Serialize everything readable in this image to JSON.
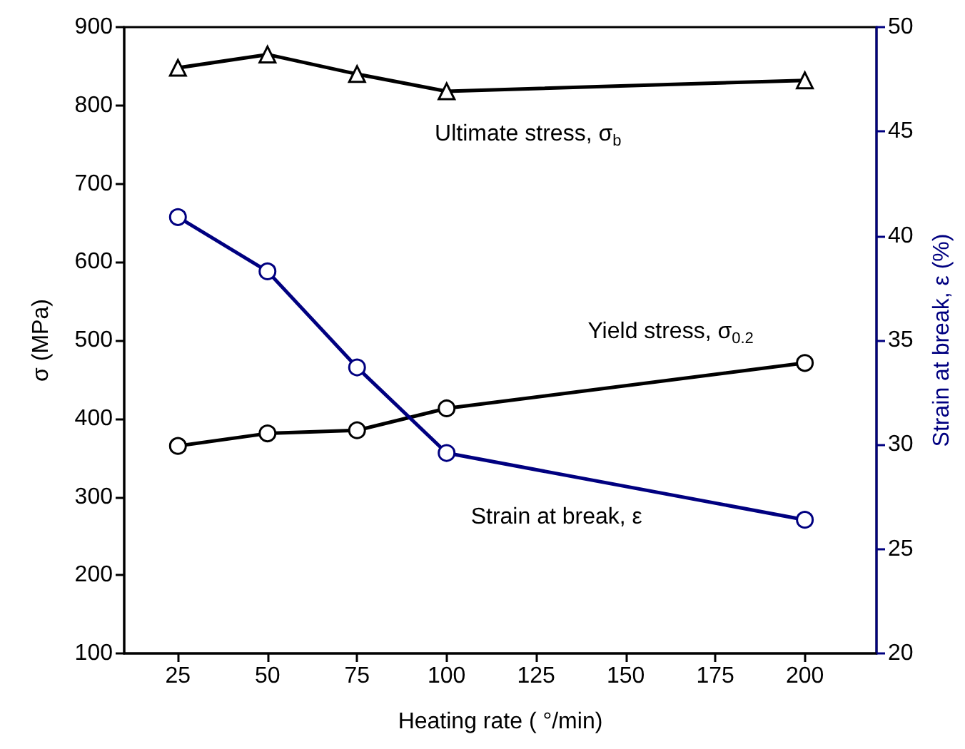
{
  "chart_data": {
    "type": "line",
    "xlabel": "Heating rate ( °/min)",
    "ylabel": "σ (MPa)",
    "y2label": "Strain at break, ε (%)",
    "x": [
      25,
      50,
      75,
      100,
      200
    ],
    "series": [
      {
        "name": "Ultimate stress, σ$_{b}$",
        "color": "#000000",
        "marker": "triangle",
        "values": [
          848,
          865,
          840,
          818,
          832
        ]
      },
      {
        "name": "Yield stress, σ$_{0.2}$",
        "color": "#000000",
        "marker": "circle",
        "values": [
          365,
          381,
          385,
          413,
          471
        ]
      },
      {
        "name": "Strain at break, ε",
        "color": "#000080",
        "marker": "circle",
        "axis": "y2",
        "values": [
          40.9,
          38.3,
          33.7,
          29.6,
          26.4
        ]
      }
    ],
    "xlim": [
      10,
      220
    ],
    "xticks": [
      25,
      50,
      75,
      100,
      125,
      150,
      175,
      200
    ],
    "ylim": [
      100,
      900
    ],
    "yticks": [
      100,
      200,
      300,
      400,
      500,
      600,
      700,
      800,
      900
    ],
    "y2lim": [
      20,
      50
    ],
    "y2ticks": [
      20,
      25,
      30,
      35,
      40,
      45,
      50
    ],
    "grid": false,
    "legend": false,
    "line_style": "solid"
  }
}
